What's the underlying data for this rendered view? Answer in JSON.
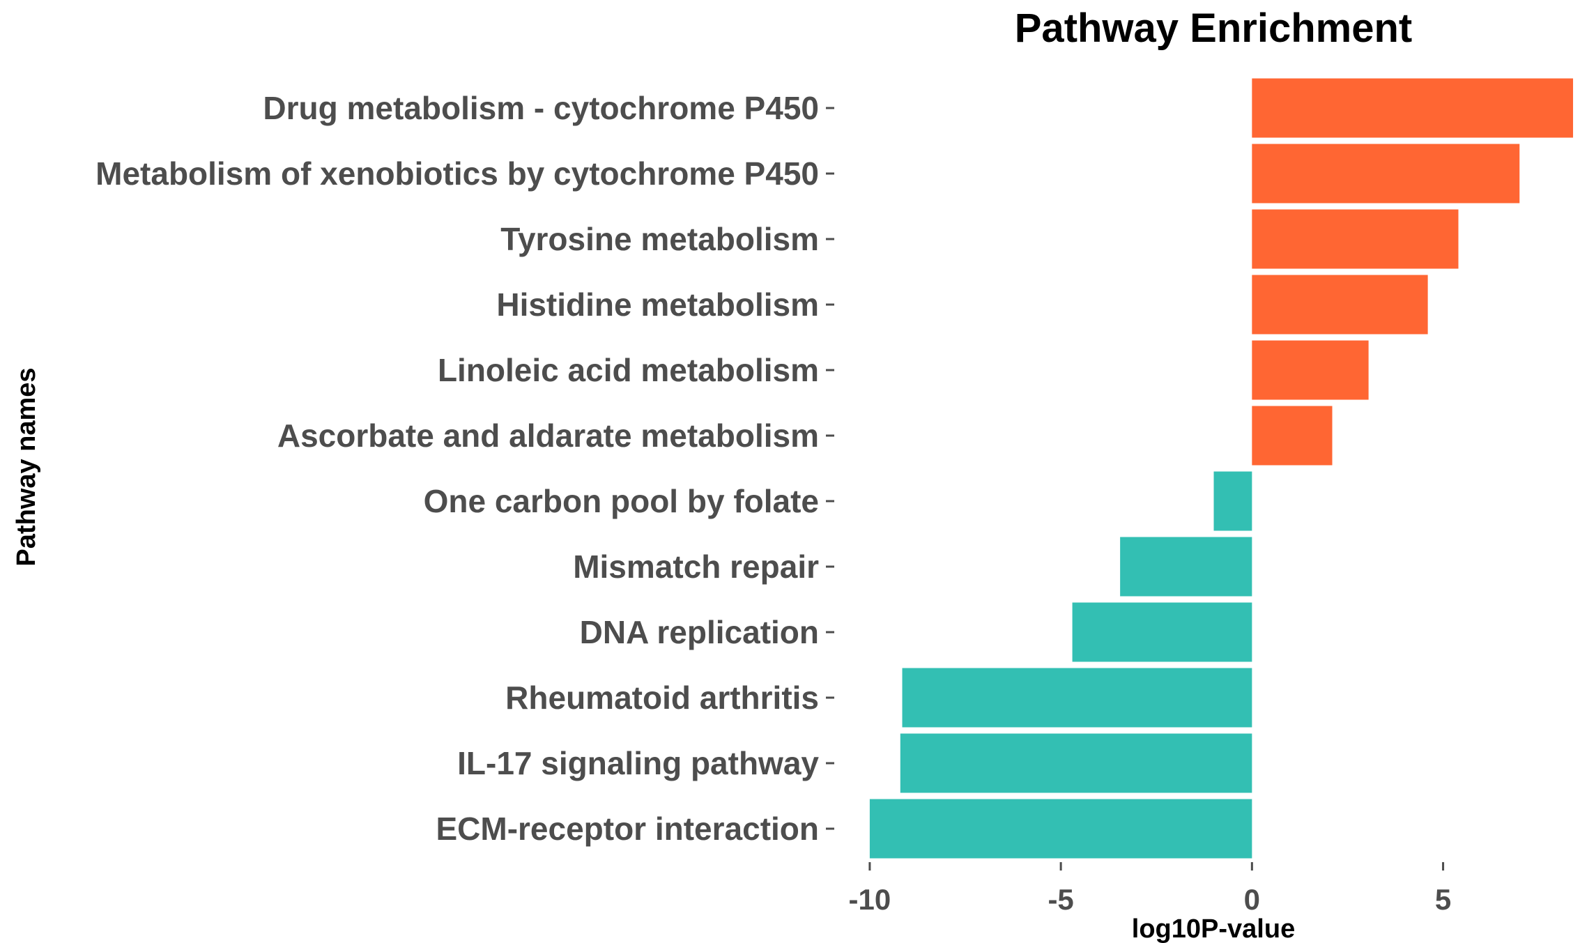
{
  "chart_data": {
    "type": "bar",
    "orientation": "horizontal",
    "title": "Pathway Enrichment",
    "xlabel": "log10P-value",
    "ylabel": "Pathway names",
    "xlim": [
      -10.6,
      8.6
    ],
    "x_ticks": [
      -10,
      -5,
      0,
      5
    ],
    "x_tick_labels": [
      "-10",
      "-5",
      "0",
      "5"
    ],
    "grid": false,
    "legend": "none",
    "colors": {
      "positive": "#ff6633",
      "negative": "#33bfb3"
    },
    "categories": [
      "Drug metabolism - cytochrome P450",
      "Metabolism of xenobiotics by cytochrome P450",
      "Tyrosine metabolism",
      "Histidine metabolism",
      "Linoleic acid metabolism",
      "Ascorbate and aldarate metabolism",
      "One carbon pool by folate",
      "Mismatch repair",
      "DNA replication",
      "Rheumatoid arthritis",
      "IL-17 signaling pathway",
      "ECM-receptor interaction"
    ],
    "values": [
      8.4,
      7.0,
      5.4,
      4.6,
      3.05,
      2.1,
      -1.0,
      -3.45,
      -4.7,
      -9.15,
      -9.2,
      -10.0
    ]
  }
}
